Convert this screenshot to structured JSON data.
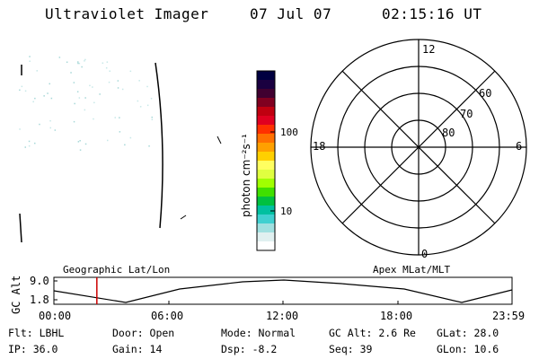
{
  "header": {
    "instrument": "Ultraviolet Imager",
    "date": "07 Jul 07",
    "time": "02:15:16 UT"
  },
  "colorbar": {
    "label": "photon cm⁻²s⁻¹",
    "ticks": [
      "100",
      "10"
    ],
    "colors": [
      "#000040",
      "#1a0040",
      "#400030",
      "#800020",
      "#c00010",
      "#e00020",
      "#ff3000",
      "#ff7000",
      "#ffa000",
      "#ffd000",
      "#ffff60",
      "#e0ff40",
      "#a0ff00",
      "#40e000",
      "#00c040",
      "#00c0a0",
      "#40d0d0",
      "#a0e0e0",
      "#e0f0f0",
      "#ffffff"
    ]
  },
  "polar": {
    "mlt_top": "12",
    "mlt_left": "18",
    "mlt_right": "6",
    "mlt_bottom": "0",
    "lat_labels": [
      "60",
      "70",
      "80"
    ]
  },
  "strip": {
    "ylabel": "GC Alt",
    "yticks": [
      "9.0",
      "1.8"
    ],
    "left_title": "Geographic Lat/Lon",
    "right_title": "Apex MLat/MLT",
    "time_ticks": [
      "00:00",
      "06:00",
      "12:00",
      "18:00",
      "23:59"
    ],
    "marker_time_hours": 2.25
  },
  "info": {
    "flt": "Flt: LBHL",
    "ip": "IP: 36.0",
    "door": "Door: Open",
    "gain": "Gain: 14",
    "mode": "Mode: Normal",
    "dsp": "Dsp:   -8.2",
    "gcalt": "GC Alt: 2.6 Re",
    "seq": "Seq: 39",
    "glat": "GLat:   28.0",
    "glon": "GLon:   10.6"
  }
}
